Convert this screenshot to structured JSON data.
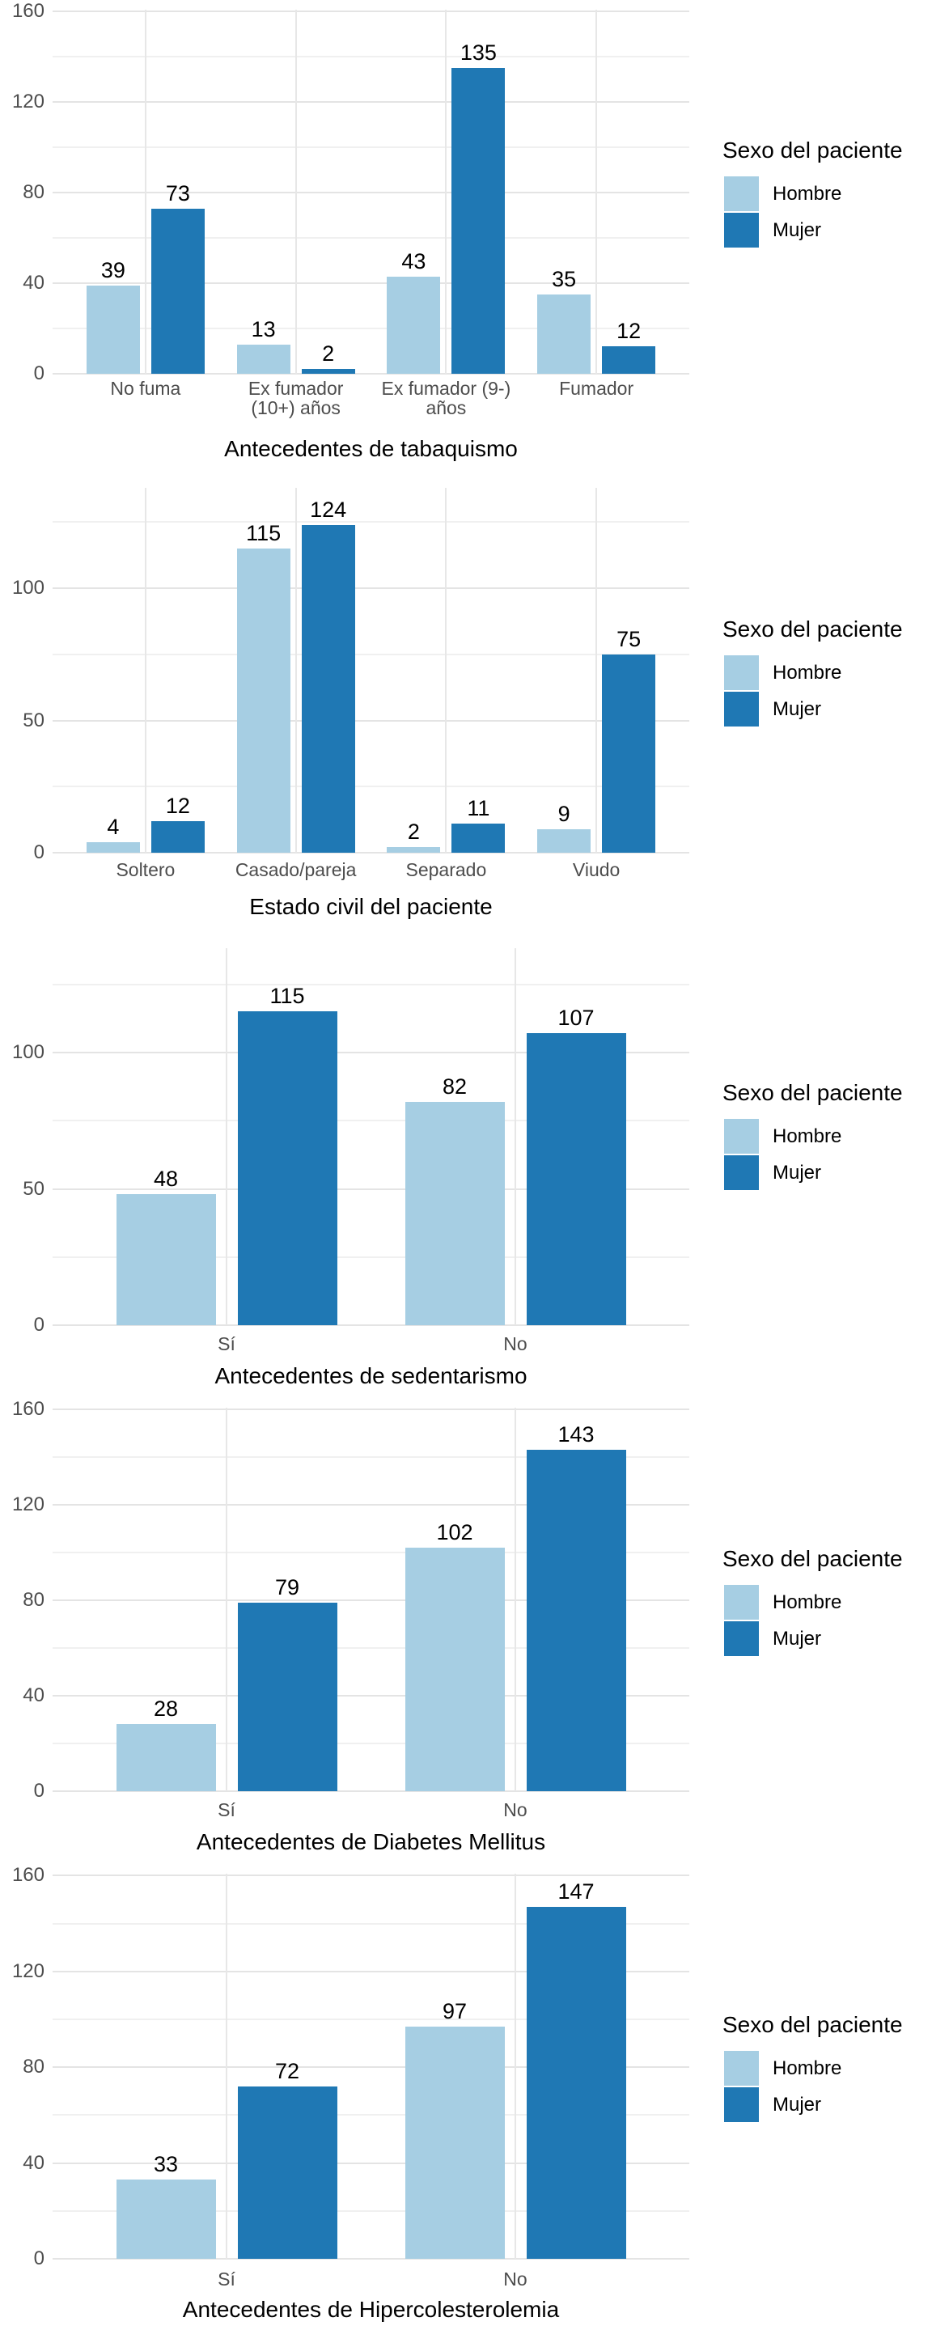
{
  "page": {
    "background": "#FFFFFF"
  },
  "colors": {
    "hombre": "#A6CEE3",
    "mujer": "#1F78B4",
    "grid_major": "#E4E4E4",
    "grid_minor": "#F0F0F0",
    "tick_text": "#4D4D4D",
    "title_text": "#000000",
    "value_text": "#000000"
  },
  "legend": {
    "title": "Sexo del paciente",
    "position": "right",
    "items": [
      {
        "label": "Hombre",
        "color": "#A6CEE3"
      },
      {
        "label": "Mujer",
        "color": "#1F78B4"
      }
    ]
  },
  "chart_data": [
    {
      "type": "bar",
      "title": "",
      "xlabel": "Antecedentes de tabaquismo",
      "ylabel": "",
      "categories": [
        "No fuma",
        "Ex fumador\n(10+) años",
        "Ex fumador (9-)\naños",
        "Fumador"
      ],
      "series": [
        {
          "name": "Hombre",
          "values": [
            39,
            13,
            43,
            35
          ]
        },
        {
          "name": "Mujer",
          "values": [
            73,
            2,
            135,
            12
          ]
        }
      ],
      "ylim": [
        0,
        160
      ],
      "yticks": [
        0,
        40,
        80,
        120,
        160
      ],
      "yminor": [
        20,
        60,
        100,
        140
      ],
      "grid": true,
      "legend_title": "Sexo del paciente",
      "legend_position": "right"
    },
    {
      "type": "bar",
      "title": "",
      "xlabel": "Estado civil del paciente",
      "ylabel": "",
      "categories": [
        "Soltero",
        "Casado/pareja",
        "Separado",
        "Viudo"
      ],
      "series": [
        {
          "name": "Hombre",
          "values": [
            4,
            115,
            2,
            9
          ]
        },
        {
          "name": "Mujer",
          "values": [
            12,
            124,
            11,
            75
          ]
        }
      ],
      "ylim": [
        0,
        130
      ],
      "yticks": [
        0,
        50,
        100
      ],
      "yminor": [
        25,
        75,
        125
      ],
      "grid": true,
      "legend_title": "Sexo del paciente",
      "legend_position": "right"
    },
    {
      "type": "bar",
      "title": "",
      "xlabel": "Antecedentes de sedentarismo",
      "ylabel": "",
      "categories": [
        "Sí",
        "No"
      ],
      "series": [
        {
          "name": "Hombre",
          "values": [
            48,
            82
          ]
        },
        {
          "name": "Mujer",
          "values": [
            115,
            107
          ]
        }
      ],
      "ylim": [
        0,
        130
      ],
      "yticks": [
        0,
        50,
        100
      ],
      "yminor": [
        25,
        75,
        125
      ],
      "grid": true,
      "legend_title": "Sexo del paciente",
      "legend_position": "right"
    },
    {
      "type": "bar",
      "title": "",
      "xlabel": "Antecedentes de Diabetes Mellitus",
      "ylabel": "",
      "categories": [
        "Sí",
        "No"
      ],
      "series": [
        {
          "name": "Hombre",
          "values": [
            28,
            102
          ]
        },
        {
          "name": "Mujer",
          "values": [
            79,
            143
          ]
        }
      ],
      "ylim": [
        0,
        160
      ],
      "yticks": [
        0,
        40,
        80,
        120,
        160
      ],
      "yminor": [
        20,
        60,
        100,
        140
      ],
      "grid": true,
      "legend_title": "Sexo del paciente",
      "legend_position": "right"
    },
    {
      "type": "bar",
      "title": "",
      "xlabel": "Antecedentes de Hipercolesterolemia",
      "ylabel": "",
      "categories": [
        "Sí",
        "No"
      ],
      "series": [
        {
          "name": "Hombre",
          "values": [
            33,
            97
          ]
        },
        {
          "name": "Mujer",
          "values": [
            72,
            147
          ]
        }
      ],
      "ylim": [
        0,
        160
      ],
      "yticks": [
        0,
        40,
        80,
        120,
        160
      ],
      "yminor": [
        20,
        60,
        100,
        140
      ],
      "grid": true,
      "legend_title": "Sexo del paciente",
      "legend_position": "right"
    }
  ]
}
